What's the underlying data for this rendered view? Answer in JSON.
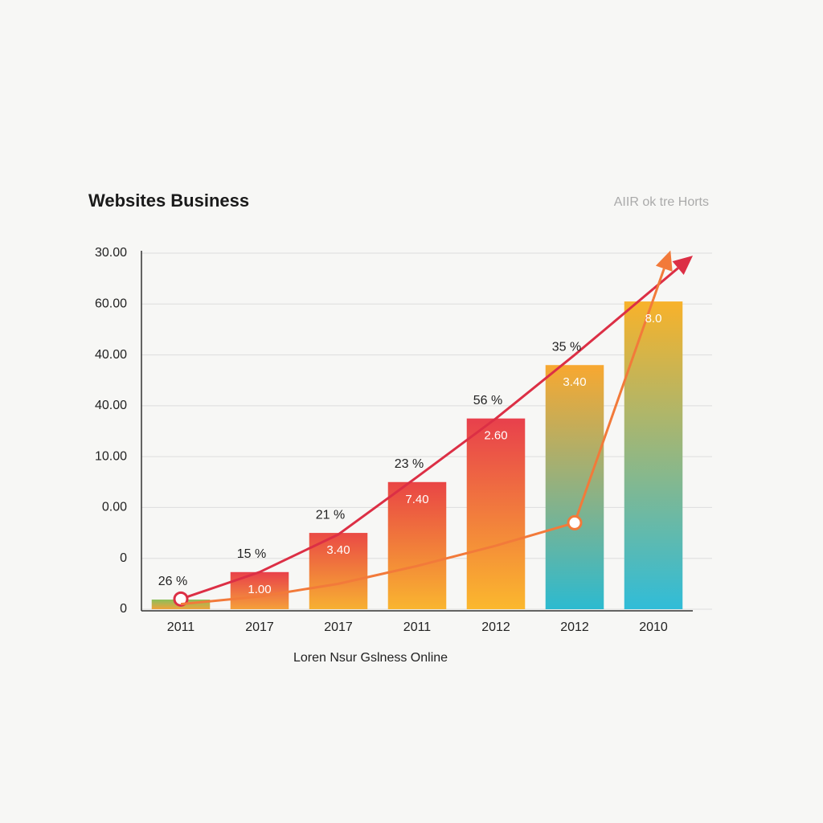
{
  "chart_data": {
    "type": "bar",
    "title": "Websites Business",
    "subtitle": "AIIR ok tre Horts",
    "x_label": "Loren Nsur Gslness Online",
    "categories": [
      "2011",
      "2017",
      "2017",
      "2011",
      "2012",
      "2012",
      "2010"
    ],
    "values": [
      0.19,
      0.73,
      1.5,
      2.5,
      3.75,
      4.8,
      6.05
    ],
    "bar_colors": [
      [
        "#8bbf5a",
        "#f0a23a"
      ],
      [
        "#e8404a",
        "#f5a03a"
      ],
      [
        "#ea4a45",
        "#f7b032"
      ],
      [
        "#e94545",
        "#f9b530"
      ],
      [
        "#e8404c",
        "#fbb82e"
      ],
      [
        "#f8a830",
        "#2cbad0"
      ],
      [
        "#f8b22a",
        "#30bcd8"
      ]
    ],
    "inner_labels": [
      null,
      "1.00",
      "3.40",
      "7.40",
      "2.60",
      "3.40",
      "8.0"
    ],
    "top_labels": [
      "26 %",
      "15 %",
      "21 %",
      "23 %",
      "56 %",
      "35 %",
      null
    ],
    "lines": [
      {
        "color": "#dc2f45",
        "values": [
          0.2,
          0.73,
          1.47,
          2.6,
          3.75,
          5.0,
          6.3
        ],
        "arrow": true,
        "markers": [
          0
        ]
      },
      {
        "color": "#f27a3a",
        "values": [
          0.1,
          0.25,
          0.5,
          0.85,
          1.25,
          1.7,
          6.1
        ],
        "arrow": true,
        "markers": [
          5
        ]
      }
    ],
    "ylim": [
      0,
      7
    ],
    "yticks": [
      0,
      {
        "value": 1,
        "label": "0"
      },
      {
        "value": 2,
        "label": "0.00"
      },
      {
        "value": 3,
        "label": "10.00"
      },
      {
        "value": 4,
        "label": "40.00"
      },
      {
        "value": 5,
        "label": "40.00"
      },
      {
        "value": 6,
        "label": "60.00"
      },
      {
        "value": 7,
        "label": "30.00"
      }
    ],
    "grid": true
  }
}
